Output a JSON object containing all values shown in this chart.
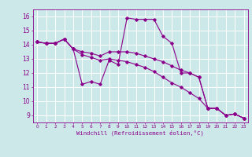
{
  "xlabel": "Windchill (Refroidissement éolien,°C)",
  "bg_color": "#cce8e8",
  "line_color": "#8b008b",
  "grid_color": "#ffffff",
  "xlim": [
    -0.5,
    23.5
  ],
  "ylim": [
    8.5,
    16.5
  ],
  "yticks": [
    9,
    10,
    11,
    12,
    13,
    14,
    15,
    16
  ],
  "xticks": [
    0,
    1,
    2,
    3,
    4,
    5,
    6,
    7,
    8,
    9,
    10,
    11,
    12,
    13,
    14,
    15,
    16,
    17,
    18,
    19,
    20,
    21,
    22,
    23
  ],
  "series": [
    [
      14.2,
      14.1,
      14.1,
      14.4,
      13.7,
      11.2,
      11.4,
      11.2,
      12.9,
      12.6,
      15.9,
      15.8,
      15.8,
      15.8,
      14.6,
      14.1,
      12.0,
      12.0,
      11.7,
      9.5,
      9.5,
      9.0,
      9.1,
      8.8
    ],
    [
      14.2,
      14.1,
      14.1,
      14.4,
      13.7,
      13.5,
      13.4,
      13.2,
      13.5,
      13.5,
      13.5,
      13.4,
      13.2,
      13.0,
      12.8,
      12.5,
      12.2,
      12.0,
      11.7,
      9.5,
      9.5,
      9.0,
      9.1,
      8.8
    ],
    [
      14.2,
      14.1,
      14.1,
      14.4,
      13.7,
      13.3,
      13.1,
      12.9,
      13.0,
      12.9,
      12.8,
      12.6,
      12.4,
      12.1,
      11.7,
      11.3,
      11.0,
      10.6,
      10.2,
      9.5,
      9.5,
      9.0,
      9.1,
      8.8
    ]
  ]
}
